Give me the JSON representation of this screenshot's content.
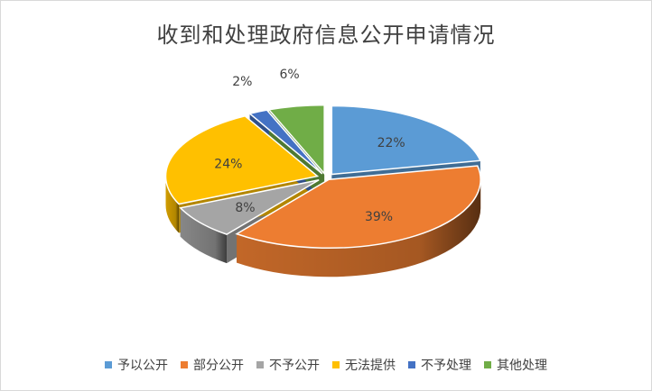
{
  "chart_data": {
    "type": "pie",
    "title": "收到和处理政府信息公开申请情况",
    "categories": [
      "予以公开",
      "部分公开",
      "不予公开",
      "无法提供",
      "不予处理",
      "其他处理"
    ],
    "values": [
      22,
      39,
      8,
      24,
      2,
      6
    ],
    "labels": [
      "22%",
      "39%",
      "8%",
      "24%",
      "2%",
      "6%"
    ],
    "colors": [
      "#5B9BD5",
      "#ED7D31",
      "#A5A5A5",
      "#FFC000",
      "#4472C4",
      "#70AD47"
    ],
    "legend_position": "bottom",
    "style": "3d-exploded"
  }
}
